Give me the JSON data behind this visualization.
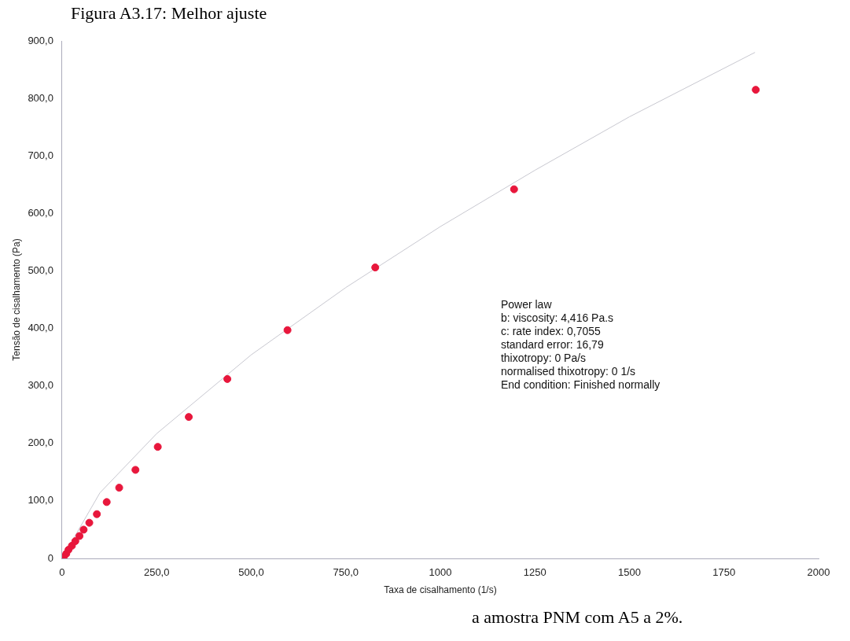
{
  "chart_data": {
    "type": "scatter",
    "title": "Figura A3.17: Melhor ajuste",
    "xlabel": "Taxa de cisalhamento (1/s)",
    "ylabel": "Tensão de cisalhamento (Pa)",
    "series": [
      {
        "type": "scatter",
        "color": "#e8173c",
        "marker": "circle",
        "x": [
          4,
          11,
          17,
          26,
          35,
          46,
          57,
          72,
          92,
          118,
          151,
          194,
          253,
          335,
          437,
          596,
          828,
          1195,
          1834
        ],
        "values": [
          2,
          8,
          15,
          22,
          30,
          39,
          50,
          62,
          77,
          98,
          123,
          154,
          194,
          246,
          312,
          397,
          506,
          642,
          815
        ]
      },
      {
        "type": "line",
        "color": "#c8c8d0",
        "marker": "none",
        "x": [
          0,
          100,
          250,
          500,
          750,
          1000,
          1250,
          1500,
          1832
        ],
        "values": [
          0,
          114,
          217,
          354,
          471,
          577,
          675,
          768,
          880
        ]
      }
    ],
    "xlim": [
      0,
      2000
    ],
    "xticks": [
      0,
      {
        "value": 250,
        "label": "250,0"
      },
      {
        "value": 500,
        "label": "500,0"
      },
      {
        "value": 750,
        "label": "750,0"
      },
      1000,
      1250,
      1500,
      1750,
      2000
    ],
    "ylim": [
      0,
      900
    ],
    "yticks": [
      0,
      {
        "value": 100,
        "label": "100,0"
      },
      {
        "value": 200,
        "label": "200,0"
      },
      {
        "value": 300,
        "label": "300,0"
      },
      {
        "value": 400,
        "label": "400,0"
      },
      {
        "value": 500,
        "label": "500,0"
      },
      {
        "value": 600,
        "label": "600,0"
      },
      {
        "value": 700,
        "label": "700,0"
      },
      {
        "value": 800,
        "label": "800,0"
      },
      {
        "value": 900,
        "label": "900,0"
      }
    ],
    "grid": false,
    "legend": false,
    "annotations": [
      "Power law\nb: viscosity: 4,416 Pa.s\nc: rate index: 0,7055\nstandard error: 16,79\nthixotropy: 0 Pa/s\nnormalised thixotropy: 0 1/s\nEnd condition: Finished normally",
      "a amostra PNM com A5 a 2%."
    ]
  }
}
